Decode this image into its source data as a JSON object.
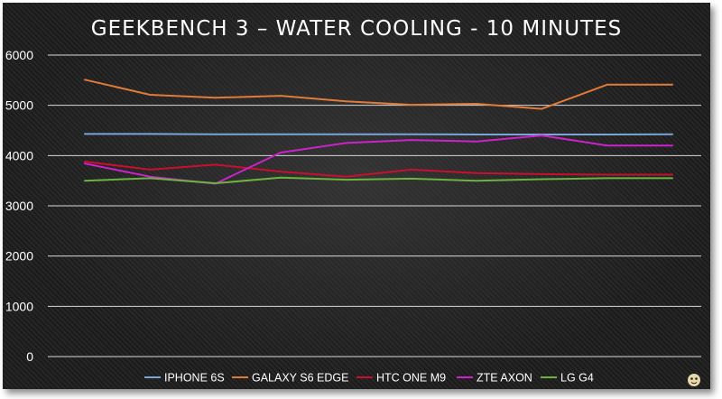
{
  "chart_data": {
    "type": "line",
    "title": "GEEKBENCH 3 – WATER COOLING - 10 MINUTES",
    "xlabel": "",
    "ylabel": "",
    "ylim": [
      0,
      6000
    ],
    "y_ticks": [
      "0",
      "1000",
      "2000",
      "3000",
      "4000",
      "5000",
      "6000"
    ],
    "grid": true,
    "legend_position": "bottom",
    "x": [
      1,
      2,
      3,
      4,
      5,
      6,
      7,
      8,
      9,
      10
    ],
    "series": [
      {
        "name": "IPHONE 6S",
        "color": "#7aa6d6",
        "values": [
          4430,
          4430,
          4425,
          4425,
          4425,
          4425,
          4420,
          4420,
          4420,
          4425
        ]
      },
      {
        "name": "GALAXY S6 EDGE",
        "color": "#e07b39",
        "values": [
          5510,
          5210,
          5150,
          5190,
          5080,
          5010,
          5030,
          4930,
          5410,
          5410
        ]
      },
      {
        "name": "HTC ONE M9",
        "color": "#c8102e",
        "values": [
          3880,
          3720,
          3820,
          3680,
          3580,
          3720,
          3650,
          3630,
          3620,
          3620
        ]
      },
      {
        "name": "ZTE AXON",
        "color": "#cc22cc",
        "values": [
          3840,
          3580,
          3440,
          4060,
          4250,
          4310,
          4280,
          4400,
          4200,
          4200
        ]
      },
      {
        "name": "LG G4",
        "color": "#6cb33f",
        "values": [
          3500,
          3550,
          3450,
          3560,
          3520,
          3540,
          3500,
          3530,
          3550,
          3550
        ]
      }
    ]
  },
  "watermark_icon": "mascot-logo-icon"
}
